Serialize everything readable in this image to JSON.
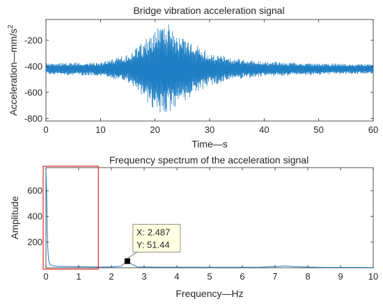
{
  "chart_data": [
    {
      "type": "line",
      "title": "Bridge vibration acceleration signal",
      "xlabel": "Time—s",
      "ylabel": "Acceleration—mm/s",
      "ylabel_superscript": "2",
      "xlim": [
        0,
        60
      ],
      "ylim": [
        -820,
        -40
      ],
      "xticks": [
        0,
        10,
        20,
        30,
        40,
        50,
        60
      ],
      "yticks": [
        -800,
        -600,
        -400,
        -200
      ],
      "grid": false,
      "line_color": "#1f7fc4",
      "signal": {
        "baseline": -420,
        "segments": [
          {
            "x": 0,
            "half_range": 45
          },
          {
            "x": 10,
            "half_range": 55
          },
          {
            "x": 15,
            "half_range": 110
          },
          {
            "x": 18,
            "half_range": 230
          },
          {
            "x": 21.5,
            "half_range": 385
          },
          {
            "x": 25,
            "half_range": 260
          },
          {
            "x": 30,
            "half_range": 130
          },
          {
            "x": 35,
            "half_range": 80
          },
          {
            "x": 40,
            "half_range": 60
          },
          {
            "x": 50,
            "half_range": 45
          },
          {
            "x": 60,
            "half_range": 40
          }
        ]
      }
    },
    {
      "type": "line",
      "title": "Frequency spectrum of the acceleration signal",
      "xlabel": "Frequency—Hz",
      "ylabel": "Amplitude",
      "xlim": [
        0,
        10
      ],
      "ylim": [
        0,
        780
      ],
      "xticks": [
        0,
        1,
        2,
        3,
        4,
        5,
        6,
        7,
        8,
        9,
        10
      ],
      "yticks": [
        200,
        400,
        600
      ],
      "grid": false,
      "line_color": "#1f7fc4",
      "x": [
        0,
        0.02,
        0.05,
        0.08,
        0.12,
        0.2,
        0.3,
        0.5,
        0.8,
        1.0,
        1.5,
        2.0,
        2.3,
        2.4,
        2.487,
        2.6,
        2.8,
        3.5,
        5.0,
        6.5,
        7.1,
        7.3,
        7.6,
        8.5,
        10
      ],
      "y": [
        760,
        600,
        180,
        60,
        25,
        18,
        12,
        10,
        9,
        8,
        6,
        6,
        12,
        35,
        51.44,
        30,
        7,
        5,
        4,
        4,
        10,
        15,
        8,
        3,
        2
      ],
      "datatip": {
        "x": 2.487,
        "y": 51.44,
        "line1": "X: 2.487",
        "line2": "Y: 51.44"
      },
      "highlight_box": {
        "x_range": [
          0,
          1.6
        ],
        "y_range": [
          0,
          780
        ],
        "color": "#d62728"
      }
    }
  ]
}
